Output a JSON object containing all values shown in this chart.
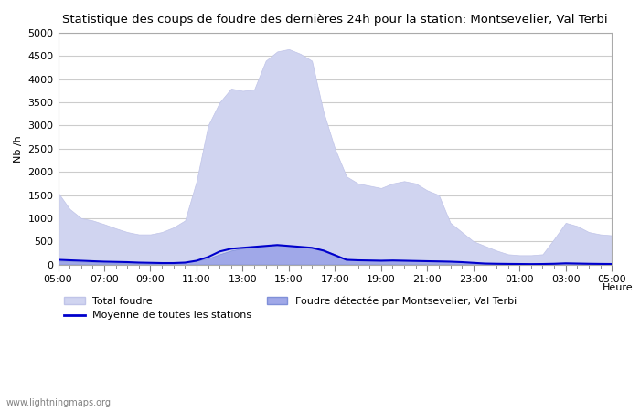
{
  "title": "Statistique des coups de foudre des dernières 24h pour la station: Montsevelier, Val Terbi",
  "xlabel": "Heure",
  "ylabel": "Nb /h",
  "xlim": [
    0,
    48
  ],
  "ylim": [
    0,
    5000
  ],
  "yticks": [
    0,
    500,
    1000,
    1500,
    2000,
    2500,
    3000,
    3500,
    4000,
    4500,
    5000
  ],
  "xtick_labels": [
    "05:00",
    "07:00",
    "09:00",
    "11:00",
    "13:00",
    "15:00",
    "17:00",
    "19:00",
    "21:00",
    "23:00",
    "01:00",
    "03:00",
    "05:00"
  ],
  "xtick_positions": [
    0,
    4,
    8,
    12,
    16,
    20,
    24,
    28,
    32,
    36,
    40,
    44,
    48
  ],
  "bg_color": "#ffffff",
  "plot_bg_color": "#ffffff",
  "grid_color": "#cccccc",
  "total_foudre_color": "#d0d4f0",
  "total_foudre_edge": "#c0c4e8",
  "local_foudre_color": "#a0a8e8",
  "local_foudre_edge": "#8090d8",
  "moyenne_color": "#0000cc",
  "watermark": "www.lightningmaps.org",
  "total_foudre_x": [
    0,
    1,
    2,
    3,
    4,
    5,
    6,
    7,
    8,
    9,
    10,
    11,
    12,
    13,
    14,
    15,
    16,
    17,
    18,
    19,
    20,
    21,
    22,
    23,
    24,
    25,
    26,
    27,
    28,
    29,
    30,
    31,
    32,
    33,
    34,
    35,
    36,
    37,
    38,
    39,
    40,
    41,
    42,
    43,
    44,
    45,
    46,
    47,
    48
  ],
  "total_foudre_y": [
    1550,
    1200,
    1000,
    950,
    870,
    780,
    700,
    650,
    650,
    700,
    800,
    950,
    1800,
    3000,
    3500,
    3800,
    3750,
    3780,
    4400,
    4600,
    4650,
    4550,
    4400,
    3300,
    2500,
    1900,
    1750,
    1700,
    1650,
    1750,
    1800,
    1750,
    1600,
    1500,
    900,
    700,
    500,
    400,
    300,
    220,
    200,
    200,
    220,
    550,
    900,
    830,
    700,
    650,
    630
  ],
  "local_foudre_x": [
    0,
    1,
    2,
    3,
    4,
    5,
    6,
    7,
    8,
    9,
    10,
    11,
    12,
    13,
    14,
    15,
    16,
    17,
    18,
    19,
    20,
    21,
    22,
    23,
    24,
    25,
    26,
    27,
    28,
    29,
    30,
    31,
    32,
    33,
    34,
    35,
    36,
    37,
    38,
    39,
    40,
    41,
    42,
    43,
    44,
    45,
    46,
    47,
    48
  ],
  "local_foudre_y": [
    80,
    70,
    60,
    50,
    40,
    35,
    30,
    25,
    20,
    25,
    30,
    40,
    80,
    130,
    220,
    300,
    350,
    370,
    400,
    410,
    400,
    390,
    370,
    320,
    220,
    110,
    100,
    100,
    95,
    100,
    95,
    90,
    85,
    80,
    70,
    55,
    40,
    25,
    20,
    15,
    12,
    10,
    12,
    20,
    30,
    25,
    20,
    18,
    15
  ],
  "moyenne_x": [
    0,
    1,
    2,
    3,
    4,
    5,
    6,
    7,
    8,
    9,
    10,
    11,
    12,
    13,
    14,
    15,
    16,
    17,
    18,
    19,
    20,
    21,
    22,
    23,
    24,
    25,
    26,
    27,
    28,
    29,
    30,
    31,
    32,
    33,
    34,
    35,
    36,
    37,
    38,
    39,
    40,
    41,
    42,
    43,
    44,
    45,
    46,
    47,
    48
  ],
  "moyenne_y": [
    100,
    90,
    80,
    70,
    60,
    55,
    50,
    40,
    35,
    30,
    30,
    40,
    80,
    160,
    280,
    340,
    360,
    380,
    400,
    420,
    400,
    380,
    360,
    300,
    200,
    100,
    90,
    85,
    80,
    85,
    80,
    75,
    70,
    65,
    60,
    50,
    35,
    20,
    15,
    12,
    10,
    8,
    10,
    15,
    25,
    20,
    15,
    12,
    10
  ]
}
